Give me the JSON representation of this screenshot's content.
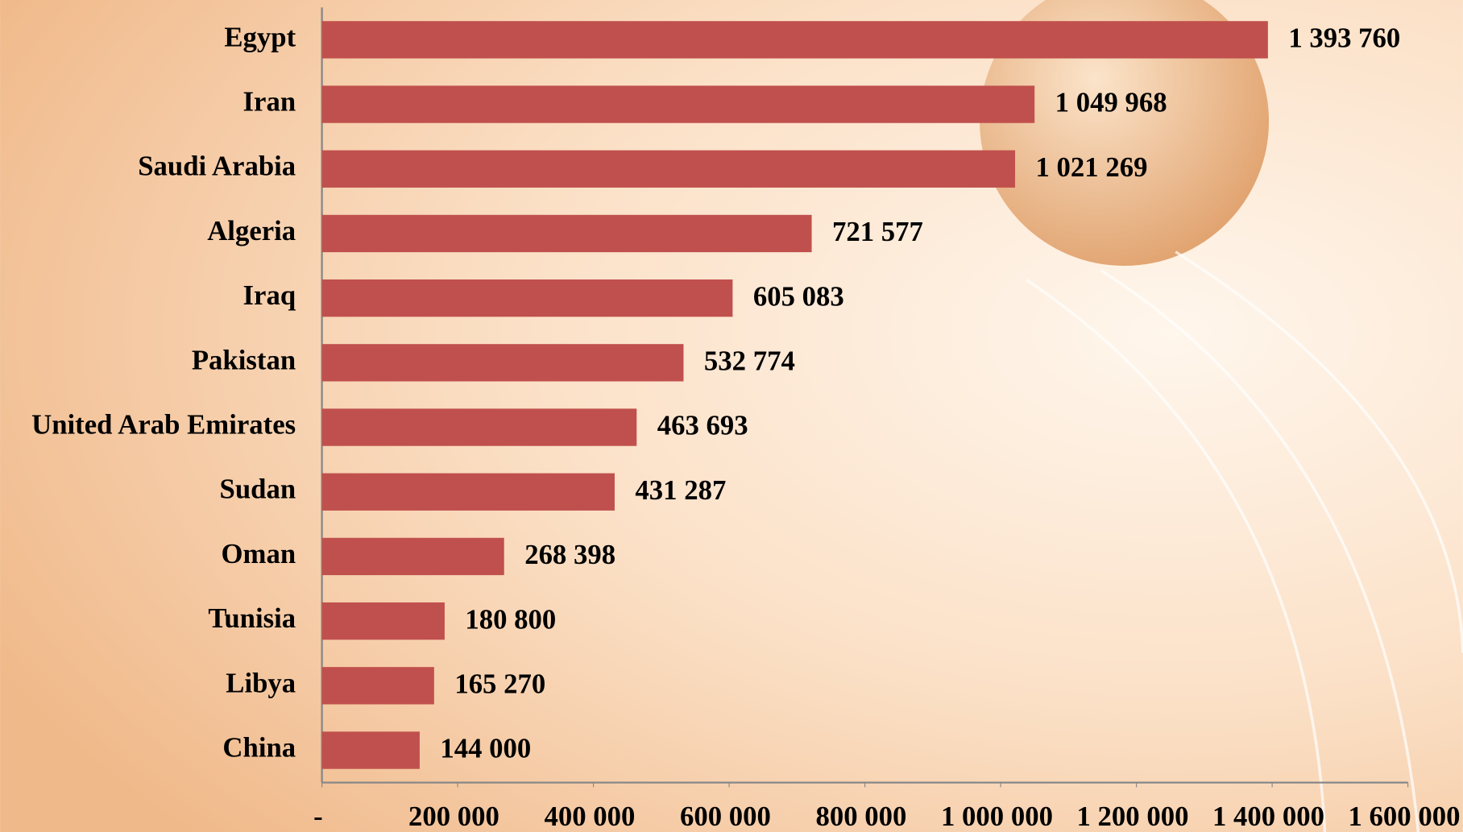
{
  "chart_data": {
    "type": "bar",
    "orientation": "horizontal",
    "color": "#c0504d",
    "categories": [
      "Egypt",
      "Iran",
      "Saudi Arabia",
      "Algeria",
      "Iraq",
      "Pakistan",
      "United Arab Emirates",
      "Sudan",
      "Oman",
      "Tunisia",
      "Libya",
      "China"
    ],
    "values": [
      1393760,
      1049968,
      1021269,
      721577,
      605083,
      532774,
      463693,
      431287,
      268398,
      180800,
      165270,
      144000
    ],
    "value_labels": [
      "1 393 760",
      "1 049 968",
      "1 021 269",
      "721 577",
      "605 083",
      "532 774",
      "463 693",
      "431 287",
      "268 398",
      "180 800",
      "165 270",
      "144 000"
    ],
    "xlim": [
      0,
      1600000
    ],
    "xticks": [
      {
        "value": 0,
        "label": "-"
      },
      {
        "value": 200000,
        "label": "200 000"
      },
      {
        "value": 400000,
        "label": "400 000"
      },
      {
        "value": 600000,
        "label": "600 000"
      },
      {
        "value": 800000,
        "label": "800 000"
      },
      {
        "value": 1000000,
        "label": "1 000 000"
      },
      {
        "value": 1200000,
        "label": "1 200 000"
      },
      {
        "value": 1400000,
        "label": "1 400 000"
      },
      {
        "value": 1600000,
        "label": "1 600 000"
      }
    ],
    "grid": false
  }
}
